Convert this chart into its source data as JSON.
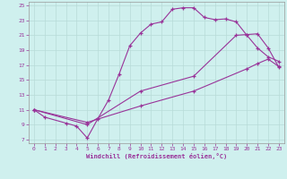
{
  "bg_color": "#cff0ee",
  "line_color": "#993399",
  "grid_color": "#b8dbd8",
  "xlabel": "Windchill (Refroidissement éolien,°C)",
  "xlim": [
    -0.5,
    23.5
  ],
  "ylim": [
    6.5,
    25.5
  ],
  "xticks": [
    0,
    1,
    2,
    3,
    4,
    5,
    6,
    7,
    8,
    9,
    10,
    11,
    12,
    13,
    14,
    15,
    16,
    17,
    18,
    19,
    20,
    21,
    22,
    23
  ],
  "yticks": [
    7,
    9,
    11,
    13,
    15,
    17,
    19,
    21,
    23,
    25
  ],
  "curve1_x": [
    0,
    1,
    3,
    4,
    5,
    6,
    7,
    8,
    9,
    10,
    11,
    12,
    13,
    14,
    15,
    16,
    17,
    18,
    19,
    20,
    21,
    22,
    23
  ],
  "curve1_y": [
    11.0,
    10.0,
    9.2,
    8.8,
    7.2,
    9.8,
    12.3,
    15.8,
    19.6,
    21.3,
    22.5,
    22.8,
    24.5,
    24.7,
    24.7,
    23.4,
    23.1,
    23.2,
    22.8,
    21.0,
    19.3,
    18.1,
    17.5
  ],
  "curve2_x": [
    0,
    5,
    10,
    15,
    19,
    20,
    21,
    22,
    23
  ],
  "curve2_y": [
    11.0,
    9.0,
    13.5,
    15.5,
    21.0,
    21.1,
    21.2,
    19.3,
    16.7
  ],
  "curve3_x": [
    0,
    5,
    10,
    15,
    20,
    21,
    22,
    23
  ],
  "curve3_y": [
    11.0,
    9.3,
    11.5,
    13.5,
    16.5,
    17.2,
    17.8,
    16.8
  ]
}
